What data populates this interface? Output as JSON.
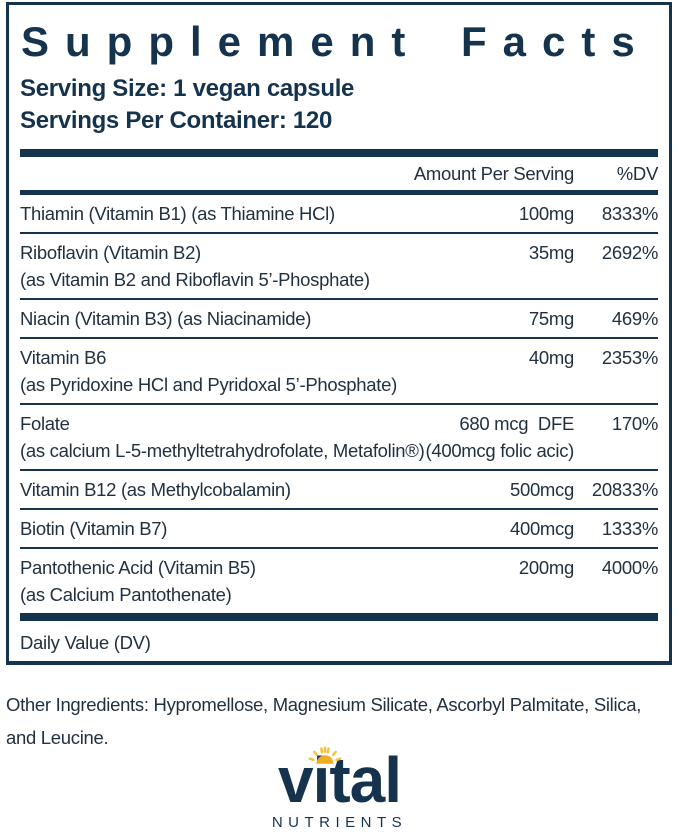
{
  "colors": {
    "navy": "#16334e",
    "text": "#223140",
    "sun_disc": "#f0ad1f",
    "sun_rays": "#f6c33d"
  },
  "label": {
    "title": "Supplement Facts",
    "serving_size": "Serving Size: 1 vegan capsule",
    "servings_per_container": "Servings Per Container: 120",
    "columns": {
      "amount": "Amount Per Serving",
      "dv": "%DV"
    },
    "rows": [
      {
        "name": "Thiamin (Vitamin B1) (as Thiamine HCl)",
        "amount": "100mg",
        "dv": "8333%"
      },
      {
        "name": "Riboflavin (Vitamin B2)",
        "name2": "(as Vitamin B2 and Riboflavin 5’-Phosphate)",
        "amount": "35mg",
        "dv": "2692%"
      },
      {
        "name": "Niacin (Vitamin B3) (as Niacinamide)",
        "amount": "75mg",
        "dv": "469%"
      },
      {
        "name": "Vitamin B6",
        "name2": "(as Pyridoxine HCl and Pyridoxal 5’-Phosphate)",
        "amount": "40mg",
        "dv": "2353%"
      },
      {
        "name": "Folate",
        "name2": "(as calcium L-5-methyltetrahydrofolate, Metafolin®)",
        "amount": "680 mcg  DFE",
        "amount2": "(400mcg folic acic)",
        "dv": "170%"
      },
      {
        "name": "Vitamin B12 (as Methylcobalamin)",
        "amount": "500mcg",
        "dv": "20833%"
      },
      {
        "name": "Biotin (Vitamin B7)",
        "amount": "400mcg",
        "dv": "1333%"
      },
      {
        "name": "Pantothenic Acid (Vitamin B5)",
        "name2": "(as Calcium Pantothenate)",
        "amount": "200mg",
        "dv": "4000%"
      }
    ],
    "footnote": "Daily Value (DV)",
    "other_ingredients_lines": [
      "Other Ingredients: Hypromellose, Magnesium Silicate, Ascorbyl Palmitate, Silica,",
      "and Leucine."
    ]
  },
  "brand": {
    "wordmark": "vital",
    "subname": "NUTRIENTS"
  }
}
